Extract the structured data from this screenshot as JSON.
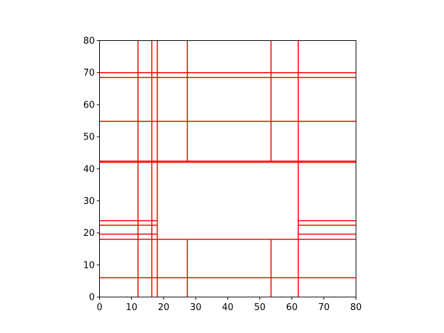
{
  "chart_data": {
    "type": "line",
    "title": "",
    "xlabel": "",
    "ylabel": "",
    "xlim": [
      0,
      80
    ],
    "ylim": [
      0,
      80
    ],
    "grid": false,
    "aspect": "equal",
    "line_color": "#ff0000",
    "x_ticks": [
      0,
      10,
      20,
      30,
      40,
      50,
      60,
      70,
      80
    ],
    "y_ticks": [
      0,
      10,
      20,
      30,
      40,
      50,
      60,
      70,
      80
    ],
    "segments": [
      {
        "x": [
          12,
          12
        ],
        "y": [
          0,
          80
        ]
      },
      {
        "x": [
          16.3,
          16.3
        ],
        "y": [
          0,
          80
        ]
      },
      {
        "x": [
          18,
          18
        ],
        "y": [
          0,
          80
        ]
      },
      {
        "x": [
          62,
          62
        ],
        "y": [
          0,
          80
        ]
      },
      {
        "x": [
          27.4,
          27.4
        ],
        "y": [
          0,
          18
        ]
      },
      {
        "x": [
          53.5,
          53.5
        ],
        "y": [
          0,
          18
        ]
      },
      {
        "x": [
          27.4,
          27.4
        ],
        "y": [
          42.2,
          80
        ]
      },
      {
        "x": [
          53.5,
          53.5
        ],
        "y": [
          42.2,
          80
        ]
      },
      {
        "x": [
          0,
          80
        ],
        "y": [
          6,
          6
        ]
      },
      {
        "x": [
          0,
          80
        ],
        "y": [
          18,
          18
        ]
      },
      {
        "x": [
          0,
          80
        ],
        "y": [
          42,
          42
        ]
      },
      {
        "x": [
          0,
          80
        ],
        "y": [
          42.4,
          42.4
        ]
      },
      {
        "x": [
          0,
          80
        ],
        "y": [
          54.8,
          54.8
        ]
      },
      {
        "x": [
          0,
          80
        ],
        "y": [
          68.5,
          68.5
        ]
      },
      {
        "x": [
          0,
          80
        ],
        "y": [
          70,
          70
        ]
      },
      {
        "x": [
          0,
          18
        ],
        "y": [
          19.6,
          19.6
        ]
      },
      {
        "x": [
          0,
          18
        ],
        "y": [
          22.4,
          22.4
        ]
      },
      {
        "x": [
          0,
          18
        ],
        "y": [
          23.8,
          23.8
        ]
      },
      {
        "x": [
          62,
          80
        ],
        "y": [
          19.6,
          19.6
        ]
      },
      {
        "x": [
          62,
          80
        ],
        "y": [
          22.4,
          22.4
        ]
      },
      {
        "x": [
          62,
          80
        ],
        "y": [
          23.8,
          23.8
        ]
      }
    ]
  }
}
